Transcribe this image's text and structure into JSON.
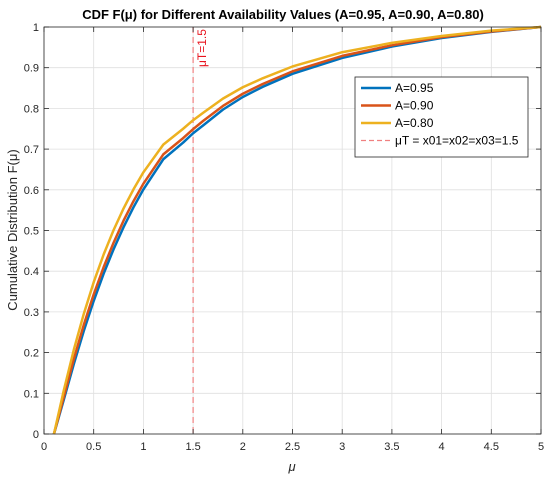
{
  "chart_data": {
    "type": "line",
    "title": "CDF F(μ) for Different Availability Values (A=0.95, A=0.90, A=0.80)",
    "xlabel": "μ",
    "ylabel": "Cumulative Distribution F(μ)",
    "xlim": [
      0,
      5
    ],
    "ylim": [
      0,
      1
    ],
    "x_ticks": [
      0,
      0.5,
      1,
      1.5,
      2,
      2.5,
      3,
      3.5,
      4,
      4.5,
      5
    ],
    "x_tick_labels": [
      "0",
      "0.5",
      "1",
      "1.5",
      "2",
      "2.5",
      "3",
      "3.5",
      "4",
      "4.5",
      "5"
    ],
    "y_ticks": [
      0,
      0.1,
      0.2,
      0.3,
      0.4,
      0.5,
      0.6,
      0.7,
      0.8,
      0.9,
      1
    ],
    "y_tick_labels": [
      "0",
      "0.1",
      "0.2",
      "0.3",
      "0.4",
      "0.5",
      "0.6",
      "0.7",
      "0.8",
      "0.9",
      "1"
    ],
    "grid": true,
    "legend_position": "top-right",
    "x": [
      0.1,
      0.2,
      0.3,
      0.4,
      0.5,
      0.6,
      0.7,
      0.8,
      0.9,
      1.0,
      1.2,
      1.4,
      1.5,
      1.6,
      1.8,
      2.0,
      2.2,
      2.5,
      3.0,
      3.5,
      4.0,
      4.5,
      5.0
    ],
    "series": [
      {
        "name": "A=0.95",
        "color": "#0072BD",
        "values": [
          0.0,
          0.085,
          0.172,
          0.253,
          0.327,
          0.394,
          0.454,
          0.508,
          0.557,
          0.601,
          0.675,
          0.716,
          0.739,
          0.758,
          0.797,
          0.828,
          0.853,
          0.885,
          0.924,
          0.952,
          0.973,
          0.988,
          1.0
        ]
      },
      {
        "name": "A=0.90",
        "color": "#D95319",
        "values": [
          0.0,
          0.092,
          0.184,
          0.268,
          0.343,
          0.41,
          0.47,
          0.524,
          0.572,
          0.615,
          0.687,
          0.727,
          0.749,
          0.769,
          0.806,
          0.836,
          0.86,
          0.891,
          0.929,
          0.955,
          0.975,
          0.989,
          1.0
        ]
      },
      {
        "name": "A=0.80",
        "color": "#EDB120",
        "values": [
          0.0,
          0.108,
          0.207,
          0.295,
          0.373,
          0.441,
          0.501,
          0.554,
          0.601,
          0.643,
          0.711,
          0.75,
          0.771,
          0.789,
          0.824,
          0.852,
          0.874,
          0.903,
          0.938,
          0.961,
          0.978,
          0.991,
          1.0
        ]
      }
    ],
    "reference_line": {
      "x": 1.5,
      "color": "#F08080",
      "label": "μT=1.5",
      "legend": "μT = x01=x02=x03=1.5"
    }
  }
}
